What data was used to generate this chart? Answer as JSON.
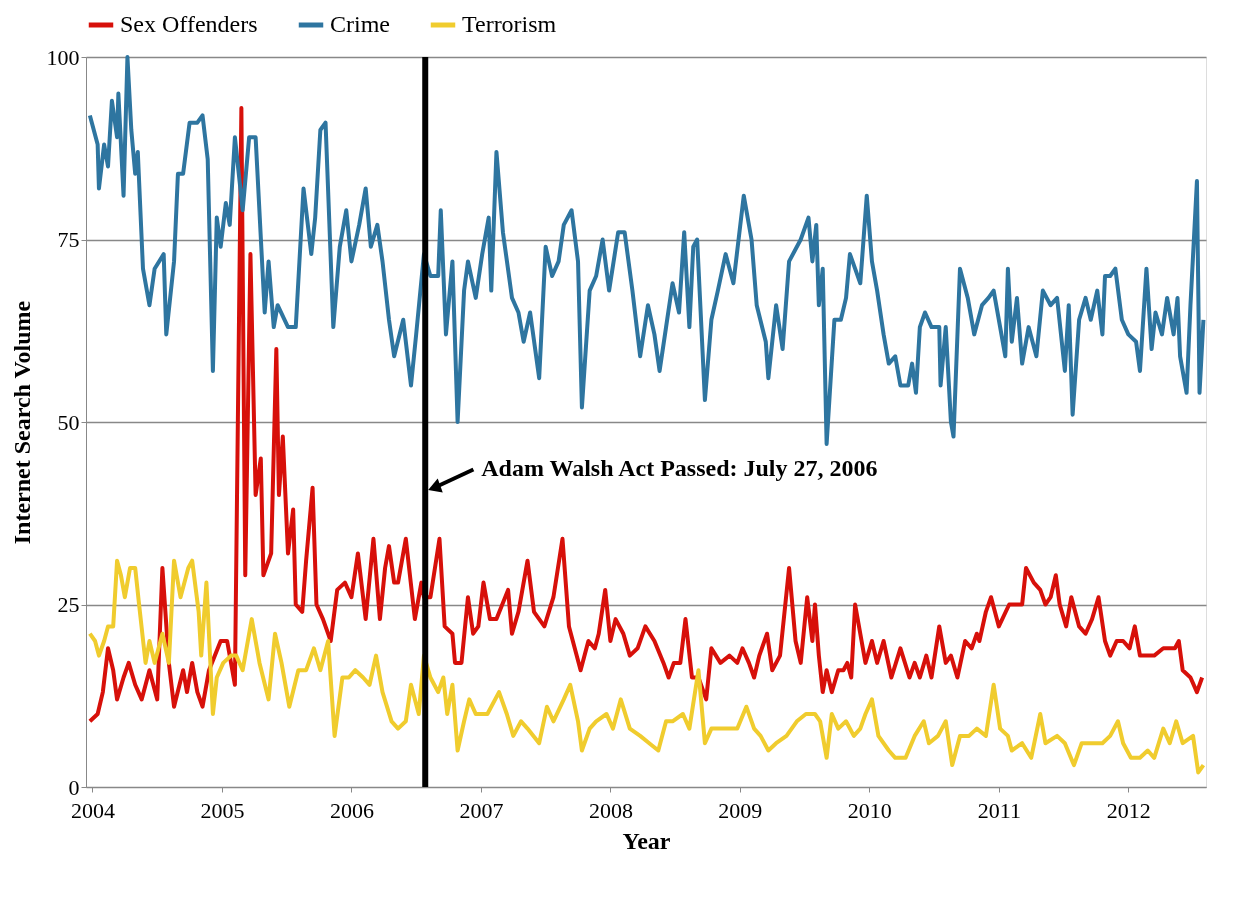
{
  "chart_data": {
    "type": "line",
    "xlabel": "Year",
    "ylabel": "Internet Search Volume",
    "xlim": [
      2003.95,
      2012.6
    ],
    "xticks": [
      2004,
      2005,
      2006,
      2007,
      2008,
      2009,
      2010,
      2011,
      2012
    ],
    "ylim": [
      0,
      100
    ],
    "yticks": [
      0,
      25,
      50,
      75,
      100
    ],
    "grid": "y",
    "legend": "top",
    "marker": "none",
    "line_style": "solid",
    "ref_lines": [
      {
        "axis": "x",
        "value": 2006.57,
        "label": "Adam Walsh Act Passed: July 27, 2006",
        "color": "#000000"
      }
    ],
    "series": [
      {
        "name": "Sex Offenders",
        "color": "#d7100a",
        "x": [
          2003.98,
          2004.04,
          2004.08,
          2004.12,
          2004.16,
          2004.19,
          2004.24,
          2004.28,
          2004.33,
          2004.38,
          2004.44,
          2004.5,
          2004.54,
          2004.59,
          2004.63,
          2004.7,
          2004.73,
          2004.77,
          2004.81,
          2004.85,
          2004.9,
          2004.99,
          2005.04,
          2005.1,
          2005.15,
          2005.18,
          2005.22,
          2005.26,
          2005.3,
          2005.32,
          2005.38,
          2005.42,
          2005.44,
          2005.47,
          2005.51,
          2005.55,
          2005.57,
          2005.62,
          2005.65,
          2005.7,
          2005.73,
          2005.78,
          2005.84,
          2005.89,
          2005.95,
          2006.0,
          2006.05,
          2006.11,
          2006.17,
          2006.22,
          2006.26,
          2006.29,
          2006.33,
          2006.36,
          2006.42,
          2006.49,
          2006.54,
          2006.56,
          2006.61,
          2006.68,
          2006.72,
          2006.78,
          2006.8,
          2006.85,
          2006.9,
          2006.94,
          2006.98,
          2007.02,
          2007.07,
          2007.12,
          2007.21,
          2007.24,
          2007.29,
          2007.36,
          2007.41,
          2007.49,
          2007.56,
          2007.63,
          2007.68,
          2007.77,
          2007.83,
          2007.88,
          2007.91,
          2007.96,
          2008.0,
          2008.04,
          2008.1,
          2008.15,
          2008.21,
          2008.27,
          2008.34,
          2008.41,
          2008.45,
          2008.49,
          2008.54,
          2008.58,
          2008.63,
          2008.68,
          2008.74,
          2008.78,
          2008.85,
          2008.92,
          2008.98,
          2009.02,
          2009.07,
          2009.11,
          2009.15,
          2009.21,
          2009.25,
          2009.31,
          2009.38,
          2009.43,
          2009.47,
          2009.52,
          2009.56,
          2009.58,
          2009.61,
          2009.64,
          2009.67,
          2009.71,
          2009.76,
          2009.8,
          2009.83,
          2009.86,
          2009.89,
          2009.97,
          2010.02,
          2010.06,
          2010.11,
          2010.17,
          2010.24,
          2010.31,
          2010.35,
          2010.39,
          2010.44,
          2010.48,
          2010.54,
          2010.59,
          2010.63,
          2010.68,
          2010.74,
          2010.79,
          2010.83,
          2010.85,
          2010.9,
          2010.94,
          2011.0,
          2011.08,
          2011.18,
          2011.21,
          2011.27,
          2011.32,
          2011.36,
          2011.4,
          2011.44,
          2011.47,
          2011.52,
          2011.56,
          2011.62,
          2011.67,
          2011.72,
          2011.77,
          2011.82,
          2011.86,
          2011.91,
          2011.96,
          2012.01,
          2012.05,
          2012.09,
          2012.15,
          2012.2,
          2012.27,
          2012.36,
          2012.39,
          2012.42,
          2012.48,
          2012.53,
          2012.57
        ],
        "values": [
          9,
          10,
          13,
          19,
          16,
          12,
          15,
          17,
          14,
          12,
          16,
          12,
          30,
          17,
          11,
          16,
          13,
          17,
          13,
          11,
          16,
          20,
          20,
          14,
          93,
          29,
          73,
          40,
          45,
          29,
          32,
          60,
          40,
          48,
          32,
          38,
          25,
          24,
          31,
          41,
          25,
          23,
          20,
          27,
          28,
          26,
          32,
          23,
          34,
          23,
          30,
          33,
          28,
          28,
          34,
          23,
          28,
          26,
          26,
          34,
          22,
          21,
          17,
          17,
          26,
          21,
          22,
          28,
          23,
          23,
          27,
          21,
          24,
          31,
          24,
          22,
          26,
          34,
          22,
          16,
          20,
          19,
          21,
          27,
          20,
          23,
          21,
          18,
          19,
          22,
          20,
          17,
          15,
          17,
          17,
          23,
          15,
          15,
          12,
          19,
          17,
          18,
          17,
          19,
          17,
          15,
          18,
          21,
          16,
          18,
          30,
          20,
          17,
          26,
          20,
          25,
          18,
          13,
          16,
          13,
          16,
          16,
          17,
          15,
          25,
          17,
          20,
          17,
          20,
          15,
          19,
          15,
          17,
          15,
          18,
          15,
          22,
          17,
          18,
          15,
          20,
          19,
          21,
          20,
          24,
          26,
          22,
          25,
          25,
          30,
          28,
          27,
          25,
          26,
          29,
          25,
          22,
          26,
          22,
          21,
          23,
          26,
          20,
          18,
          20,
          20,
          19,
          22,
          18,
          18,
          18,
          19,
          19,
          20,
          16,
          15,
          13,
          15
        ]
      },
      {
        "name": "Crime",
        "color": "#2e75a0",
        "x": [
          2003.98,
          2004.04,
          2004.05,
          2004.09,
          2004.12,
          2004.15,
          2004.19,
          2004.2,
          2004.24,
          2004.27,
          2004.3,
          2004.33,
          2004.35,
          2004.39,
          2004.44,
          2004.48,
          2004.55,
          2004.57,
          2004.63,
          2004.66,
          2004.7,
          2004.75,
          2004.81,
          2004.85,
          2004.89,
          2004.93,
          2004.96,
          2004.99,
          2005.03,
          2005.06,
          2005.1,
          2005.16,
          2005.21,
          2005.26,
          2005.33,
          2005.36,
          2005.4,
          2005.43,
          2005.51,
          2005.57,
          2005.63,
          2005.69,
          2005.72,
          2005.76,
          2005.8,
          2005.86,
          2005.91,
          2005.96,
          2006.0,
          2006.06,
          2006.11,
          2006.15,
          2006.2,
          2006.24,
          2006.29,
          2006.33,
          2006.4,
          2006.46,
          2006.5,
          2006.56,
          2006.61,
          2006.67,
          2006.69,
          2006.73,
          2006.78,
          2006.82,
          2006.87,
          2006.9,
          2006.96,
          2007.01,
          2007.06,
          2007.08,
          2007.12,
          2007.17,
          2007.24,
          2007.29,
          2007.33,
          2007.38,
          2007.45,
          2007.5,
          2007.55,
          2007.6,
          2007.64,
          2007.7,
          2007.75,
          2007.78,
          2007.84,
          2007.89,
          2007.94,
          2007.99,
          2008.06,
          2008.11,
          2008.17,
          2008.23,
          2008.29,
          2008.34,
          2008.38,
          2008.43,
          2008.48,
          2008.53,
          2008.57,
          2008.61,
          2008.64,
          2008.67,
          2008.73,
          2008.78,
          2008.83,
          2008.89,
          2008.95,
          2009.03,
          2009.09,
          2009.13,
          2009.2,
          2009.22,
          2009.28,
          2009.33,
          2009.38,
          2009.47,
          2009.53,
          2009.56,
          2009.59,
          2009.61,
          2009.64,
          2009.67,
          2009.73,
          2009.78,
          2009.82,
          2009.85,
          2009.89,
          2009.93,
          2009.98,
          2010.02,
          2010.06,
          2010.11,
          2010.15,
          2010.2,
          2010.24,
          2010.3,
          2010.33,
          2010.36,
          2010.39,
          2010.43,
          2010.48,
          2010.54,
          2010.55,
          2010.59,
          2010.63,
          2010.65,
          2010.7,
          2010.76,
          2010.81,
          2010.87,
          2010.92,
          2010.96,
          2011.01,
          2011.05,
          2011.07,
          2011.1,
          2011.14,
          2011.18,
          2011.23,
          2011.29,
          2011.34,
          2011.4,
          2011.45,
          2011.51,
          2011.54,
          2011.57,
          2011.62,
          2011.67,
          2011.71,
          2011.76,
          2011.8,
          2011.82,
          2011.86,
          2011.9,
          2011.95,
          2012.0,
          2012.06,
          2012.09,
          2012.14,
          2012.18,
          2012.21,
          2012.26,
          2012.3,
          2012.35,
          2012.38,
          2012.4,
          2012.45,
          2012.48,
          2012.53,
          2012.55,
          2012.58
        ],
        "values": [
          92,
          88,
          82,
          88,
          85,
          94,
          89,
          95,
          81,
          100,
          90,
          84,
          87,
          71,
          66,
          71,
          73,
          62,
          72,
          84,
          84,
          91,
          91,
          92,
          86,
          57,
          78,
          74,
          80,
          77,
          89,
          79,
          89,
          89,
          65,
          72,
          63,
          66,
          63,
          63,
          82,
          73,
          78,
          90,
          91,
          63,
          74,
          79,
          72,
          77,
          82,
          74,
          77,
          72,
          64,
          59,
          64,
          55,
          62,
          73,
          70,
          70,
          79,
          62,
          72,
          50,
          68,
          72,
          67,
          73,
          78,
          68,
          87,
          76,
          67,
          65,
          61,
          65,
          56,
          74,
          70,
          72,
          77,
          79,
          72,
          52,
          68,
          70,
          75,
          68,
          76,
          76,
          68,
          59,
          66,
          62,
          57,
          63,
          69,
          65,
          76,
          63,
          74,
          75,
          53,
          64,
          68,
          73,
          69,
          81,
          75,
          66,
          61,
          56,
          66,
          60,
          72,
          75,
          78,
          72,
          77,
          66,
          71,
          47,
          64,
          64,
          67,
          73,
          71,
          69,
          81,
          72,
          68,
          62,
          58,
          59,
          55,
          55,
          58,
          54,
          63,
          65,
          63,
          63,
          55,
          63,
          50,
          48,
          71,
          67,
          62,
          66,
          67,
          68,
          63,
          59,
          71,
          61,
          67,
          58,
          63,
          59,
          68,
          66,
          67,
          57,
          66,
          51,
          64,
          67,
          64,
          68,
          62,
          70,
          70,
          71,
          64,
          62,
          61,
          57,
          71,
          60,
          65,
          62,
          67,
          62,
          67,
          59,
          54,
          66,
          83,
          54,
          64
        ]
      },
      {
        "name": "Terrorism",
        "color": "#f0cc2e",
        "x": [
          2003.98,
          2004.02,
          2004.05,
          2004.09,
          2004.12,
          2004.16,
          2004.19,
          2004.22,
          2004.25,
          2004.29,
          2004.33,
          2004.36,
          2004.41,
          2004.44,
          2004.48,
          2004.54,
          2004.59,
          2004.63,
          2004.68,
          2004.74,
          2004.77,
          2004.82,
          2004.84,
          2004.88,
          2004.93,
          2004.96,
          2005.01,
          2005.07,
          2005.11,
          2005.16,
          2005.23,
          2005.29,
          2005.36,
          2005.41,
          2005.46,
          2005.52,
          2005.59,
          2005.65,
          2005.71,
          2005.76,
          2005.82,
          2005.87,
          2005.93,
          2005.98,
          2006.03,
          2006.09,
          2006.14,
          2006.19,
          2006.24,
          2006.31,
          2006.36,
          2006.42,
          2006.46,
          2006.52,
          2006.56,
          2006.61,
          2006.67,
          2006.71,
          2006.74,
          2006.78,
          2006.82,
          2006.87,
          2006.91,
          2006.96,
          2007.05,
          2007.14,
          2007.2,
          2007.25,
          2007.31,
          2007.36,
          2007.45,
          2007.51,
          2007.56,
          2007.64,
          2007.69,
          2007.75,
          2007.78,
          2007.84,
          2007.89,
          2007.97,
          2008.02,
          2008.08,
          2008.15,
          2008.23,
          2008.3,
          2008.37,
          2008.43,
          2008.48,
          2008.56,
          2008.61,
          2008.68,
          2008.73,
          2008.78,
          2008.89,
          2008.98,
          2009.05,
          2009.11,
          2009.16,
          2009.22,
          2009.28,
          2009.36,
          2009.44,
          2009.51,
          2009.58,
          2009.62,
          2009.67,
          2009.71,
          2009.76,
          2009.82,
          2009.88,
          2009.93,
          2009.97,
          2010.02,
          2010.07,
          2010.15,
          2010.2,
          2010.28,
          2010.35,
          2010.42,
          2010.46,
          2010.53,
          2010.59,
          2010.64,
          2010.7,
          2010.77,
          2010.83,
          2010.9,
          2010.96,
          2011.01,
          2011.07,
          2011.1,
          2011.18,
          2011.25,
          2011.32,
          2011.36,
          2011.45,
          2011.51,
          2011.58,
          2011.64,
          2011.72,
          2011.8,
          2011.86,
          2011.92,
          2011.96,
          2012.02,
          2012.09,
          2012.15,
          2012.2,
          2012.27,
          2012.32,
          2012.37,
          2012.42,
          2012.5,
          2012.54,
          2012.58
        ],
        "values": [
          21,
          20,
          18,
          20,
          22,
          22,
          31,
          29,
          26,
          30,
          30,
          25,
          17,
          20,
          17,
          21,
          17,
          31,
          26,
          30,
          31,
          24,
          18,
          28,
          10,
          15,
          17,
          18,
          18,
          16,
          23,
          17,
          12,
          21,
          17,
          11,
          16,
          16,
          19,
          16,
          20,
          7,
          15,
          15,
          16,
          15,
          14,
          18,
          13,
          9,
          8,
          9,
          14,
          10,
          18,
          15,
          13,
          15,
          10,
          14,
          5,
          9,
          12,
          10,
          10,
          13,
          10,
          7,
          9,
          8,
          6,
          11,
          9,
          12,
          14,
          9,
          5,
          8,
          9,
          10,
          8,
          12,
          8,
          7,
          6,
          5,
          9,
          9,
          10,
          8,
          16,
          6,
          8,
          8,
          8,
          11,
          8,
          7,
          5,
          6,
          7,
          9,
          10,
          10,
          9,
          4,
          10,
          8,
          9,
          7,
          8,
          10,
          12,
          7,
          5,
          4,
          4,
          7,
          9,
          6,
          7,
          9,
          3,
          7,
          7,
          8,
          7,
          14,
          8,
          7,
          5,
          6,
          4,
          10,
          6,
          7,
          6,
          3,
          6,
          6,
          6,
          7,
          9,
          6,
          4,
          4,
          5,
          4,
          8,
          6,
          9,
          6,
          7,
          2,
          3
        ]
      }
    ]
  }
}
